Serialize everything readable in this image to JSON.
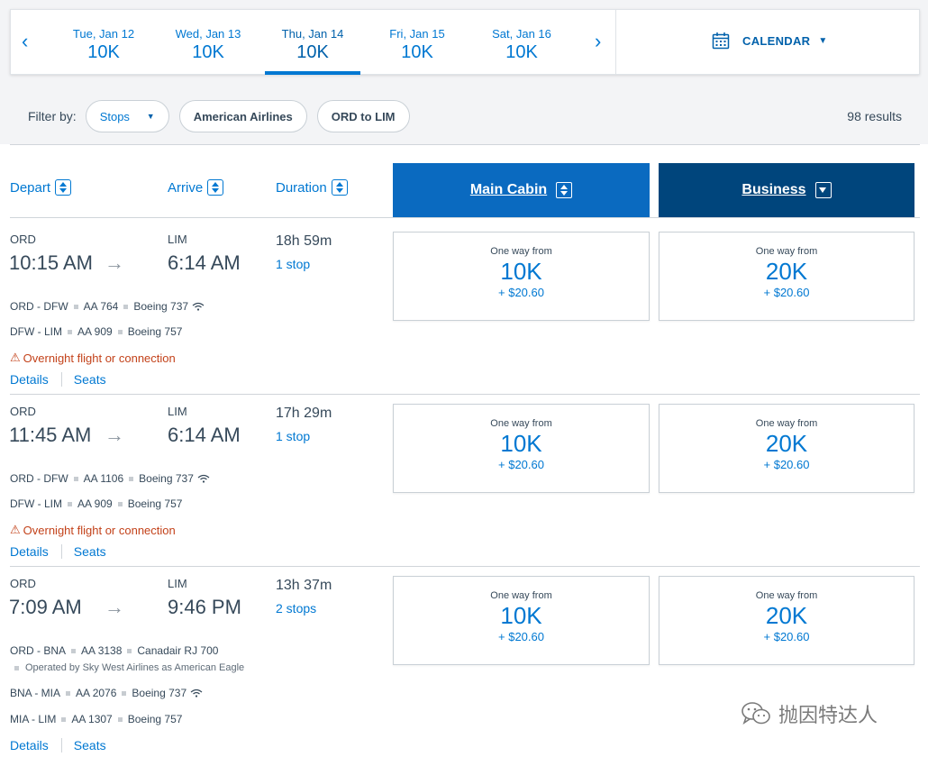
{
  "date_bar": {
    "tabs": [
      {
        "day": "Tue, Jan 12",
        "price": "10K"
      },
      {
        "day": "Wed, Jan 13",
        "price": "10K"
      },
      {
        "day": "Thu, Jan 14",
        "price": "10K"
      },
      {
        "day": "Fri, Jan 15",
        "price": "10K"
      },
      {
        "day": "Sat, Jan 16",
        "price": "10K"
      }
    ],
    "prev_icon": "chevron-left-icon",
    "next_icon": "chevron-right-icon",
    "calendar_label": "CALENDAR",
    "calendar_icon": "calendar-icon"
  },
  "filters": {
    "label": "Filter by:",
    "stops": "Stops",
    "airline": "American Airlines",
    "route": "ORD to LIM",
    "results": "98 results"
  },
  "header": {
    "depart": "Depart",
    "arrive": "Arrive",
    "duration": "Duration",
    "main_cabin": "Main Cabin",
    "business": "Business"
  },
  "colors": {
    "accent": "#0078d2",
    "main_cabin_bg": "#0a6ac0",
    "business_bg": "#00457c",
    "warning": "#c3421a"
  },
  "flights": [
    {
      "depart_code": "ORD",
      "depart_time": "10:15 AM",
      "arrive_code": "LIM",
      "arrive_time": "6:14 AM",
      "duration": "18h 59m",
      "stops": "1 stop",
      "segments": [
        {
          "route": "ORD - DFW",
          "flight": "AA 764",
          "aircraft": "Boeing 737",
          "wifi": true
        },
        {
          "route": "DFW - LIM",
          "flight": "AA 909",
          "aircraft": "Boeing 757",
          "wifi": false
        }
      ],
      "warning": "Overnight flight or connection",
      "main": {
        "from": "One way from",
        "miles": "10K",
        "tax": "+ $20.60"
      },
      "business": {
        "from": "One way from",
        "miles": "20K",
        "tax": "+ $20.60"
      },
      "details": "Details",
      "seats": "Seats"
    },
    {
      "depart_code": "ORD",
      "depart_time": "11:45 AM",
      "arrive_code": "LIM",
      "arrive_time": "6:14 AM",
      "duration": "17h 29m",
      "stops": "1 stop",
      "segments": [
        {
          "route": "ORD - DFW",
          "flight": "AA 1106",
          "aircraft": "Boeing 737",
          "wifi": true
        },
        {
          "route": "DFW - LIM",
          "flight": "AA 909",
          "aircraft": "Boeing 757",
          "wifi": false
        }
      ],
      "warning": "Overnight flight or connection",
      "main": {
        "from": "One way from",
        "miles": "10K",
        "tax": "+ $20.60"
      },
      "business": {
        "from": "One way from",
        "miles": "20K",
        "tax": "+ $20.60"
      },
      "details": "Details",
      "seats": "Seats"
    },
    {
      "depart_code": "ORD",
      "depart_time": "7:09 AM",
      "arrive_code": "LIM",
      "arrive_time": "9:46 PM",
      "duration": "13h 37m",
      "stops": "2 stops",
      "segments": [
        {
          "route": "ORD - BNA",
          "flight": "AA 3138",
          "aircraft": "Canadair RJ 700",
          "wifi": false
        },
        {
          "route": "BNA - MIA",
          "flight": "AA 2076",
          "aircraft": "Boeing 737",
          "wifi": true
        },
        {
          "route": "MIA - LIM",
          "flight": "AA 1307",
          "aircraft": "Boeing 757",
          "wifi": false
        }
      ],
      "operated_by": "Operated by Sky West Airlines as American Eagle",
      "main": {
        "from": "One way from",
        "miles": "10K",
        "tax": "+ $20.60"
      },
      "business": {
        "from": "One way from",
        "miles": "20K",
        "tax": "+ $20.60"
      },
      "details": "Details",
      "seats": "Seats"
    }
  ],
  "watermark": {
    "text": "抛因特达人",
    "icon": "wechat-icon"
  }
}
